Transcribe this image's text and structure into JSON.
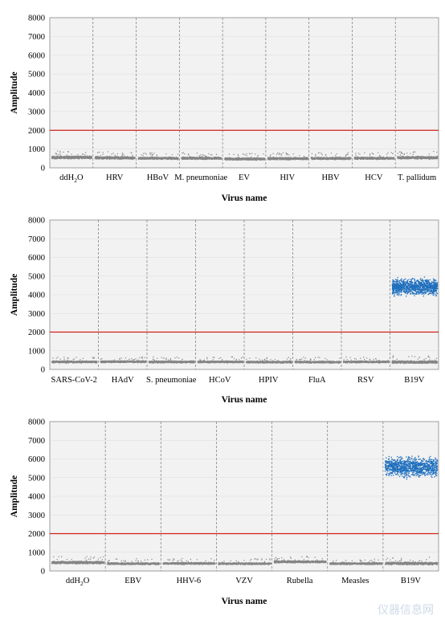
{
  "watermark": "仪器信息网",
  "chart_data": [
    {
      "type": "scatter",
      "ylabel": "Amplitude",
      "xlabel": "Virus name",
      "ylim": [
        0,
        8000
      ],
      "yticks": [
        "0",
        "1000",
        "2000",
        "3000",
        "4000",
        "5000",
        "6000",
        "7000",
        "8000"
      ],
      "threshold": 2000,
      "categories": [
        "ddH2O",
        "HRV",
        "HBoV",
        "M. pneumoniae",
        "EV",
        "HIV",
        "HBV",
        "HCV",
        "T. pallidum"
      ],
      "series": [
        {
          "kind": "negative",
          "clusters": [
            [
              580,
              90
            ],
            [
              560,
              90
            ],
            [
              540,
              80
            ],
            [
              540,
              80
            ],
            [
              500,
              80
            ],
            [
              520,
              80
            ],
            [
              530,
              80
            ],
            [
              540,
              80
            ],
            [
              570,
              90
            ]
          ]
        },
        {
          "kind": "positive",
          "clusters": [
            null,
            null,
            null,
            null,
            null,
            null,
            null,
            null,
            null
          ]
        }
      ]
    },
    {
      "type": "scatter",
      "ylabel": "Amplitude",
      "xlabel": "Virus name",
      "ylim": [
        0,
        8000
      ],
      "yticks": [
        "0",
        "1000",
        "2000",
        "3000",
        "4000",
        "5000",
        "6000",
        "7000",
        "8000"
      ],
      "threshold": 2000,
      "categories": [
        "SARS-CoV-2",
        "HAdV",
        "S. pneumoniae",
        "HCoV",
        "HPIV",
        "FluA",
        "RSV",
        "B19V"
      ],
      "series": [
        {
          "kind": "negative",
          "clusters": [
            [
              430,
              70
            ],
            [
              440,
              70
            ],
            [
              430,
              70
            ],
            [
              430,
              70
            ],
            [
              420,
              70
            ],
            [
              420,
              70
            ],
            [
              430,
              70
            ],
            [
              420,
              90
            ]
          ]
        },
        {
          "kind": "positive",
          "clusters": [
            null,
            null,
            null,
            null,
            null,
            null,
            null,
            [
              4450,
              550
            ]
          ]
        }
      ]
    },
    {
      "type": "scatter",
      "ylabel": "Amplitude",
      "xlabel": "Virus name",
      "ylim": [
        0,
        8000
      ],
      "yticks": [
        "0",
        "1000",
        "2000",
        "3000",
        "4000",
        "5000",
        "6000",
        "7000",
        "8000"
      ],
      "threshold": 2000,
      "categories": [
        "ddH2O",
        "EBV",
        "HHV-6",
        "VZV",
        "Rubella",
        "Measles",
        "B19V"
      ],
      "series": [
        {
          "kind": "negative",
          "clusters": [
            [
              480,
              90
            ],
            [
              420,
              70
            ],
            [
              430,
              70
            ],
            [
              420,
              70
            ],
            [
              520,
              80
            ],
            [
              420,
              70
            ],
            [
              430,
              90
            ]
          ]
        },
        {
          "kind": "positive",
          "clusters": [
            null,
            null,
            null,
            null,
            null,
            null,
            [
              5600,
              700
            ]
          ]
        }
      ]
    }
  ]
}
